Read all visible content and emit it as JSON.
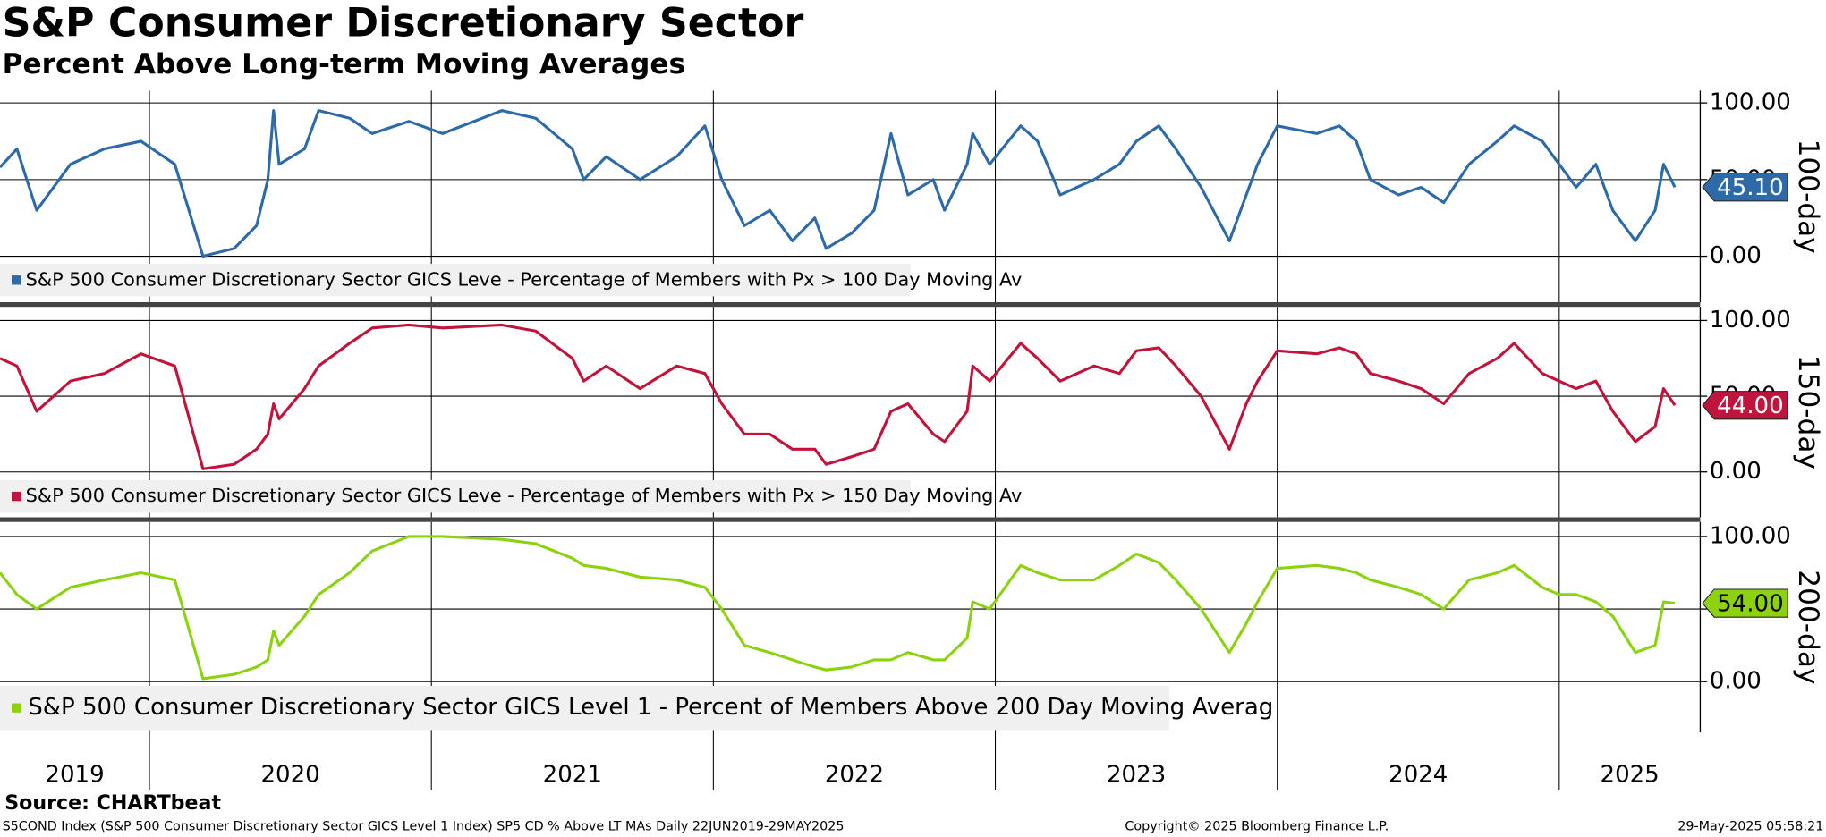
{
  "title": "S&P Consumer Discretionary Sector",
  "subtitle": "Percent Above Long-term Moving Averages",
  "x_axis": {
    "labels": [
      "2019",
      "2020",
      "2021",
      "2022",
      "2023",
      "2024",
      "2025"
    ]
  },
  "source": "Source: CHARTbeat",
  "footer": {
    "left": "S5COND Index (S&P 500 Consumer Discretionary Sector GICS Level 1 Index) SP5 CD % Above LT MAs  Daily 22JUN2019-29MAY2025",
    "center": "Copyright© 2025 Bloomberg Finance L.P.",
    "right": "29-May-2025 05:58:21"
  },
  "chart_data": [
    {
      "type": "line",
      "ylabel": "100-day",
      "last_label": "45.10",
      "xlim": [
        2019.47,
        2025.5
      ],
      "xticks": [
        2020,
        2021,
        2022,
        2023,
        2024,
        2025
      ],
      "ylim": [
        -30,
        108
      ],
      "yticks": [
        {
          "value": 100,
          "label": "100.00"
        },
        {
          "value": 50,
          "label": "50.00"
        },
        {
          "value": 0,
          "label": "0.00"
        }
      ],
      "grid": true,
      "x": [
        2019.47,
        2019.53,
        2019.6,
        2019.72,
        2019.84,
        2019.97,
        2020.09,
        2020.19,
        2020.3,
        2020.38,
        2020.42,
        2020.44,
        2020.46,
        2020.55,
        2020.6,
        2020.71,
        2020.79,
        2020.92,
        2021.04,
        2021.25,
        2021.37,
        2021.5,
        2021.54,
        2021.62,
        2021.74,
        2021.87,
        2021.97,
        2022.03,
        2022.11,
        2022.2,
        2022.28,
        2022.36,
        2022.4,
        2022.49,
        2022.57,
        2022.63,
        2022.69,
        2022.78,
        2022.82,
        2022.9,
        2022.92,
        2022.98,
        2023.09,
        2023.15,
        2023.23,
        2023.35,
        2023.44,
        2023.5,
        2023.58,
        2023.64,
        2023.73,
        2023.83,
        2023.89,
        2023.93,
        2024.0,
        2024.14,
        2024.22,
        2024.28,
        2024.33,
        2024.43,
        2024.51,
        2024.59,
        2024.68,
        2024.78,
        2024.84,
        2024.94,
        2025.0,
        2025.06,
        2025.13,
        2025.19,
        2025.27,
        2025.34,
        2025.37,
        2025.41
      ],
      "series": [
        {
          "name": "S&P 500 Consumer Discretionary Sector GICS Leve - Percentage of Members with Px > 100 Day Moving Av",
          "color": "#2e6aa8",
          "values": [
            58,
            70,
            30,
            60,
            70,
            75,
            60,
            0,
            5,
            20,
            50,
            95,
            60,
            70,
            95,
            90,
            80,
            88,
            80,
            95,
            90,
            70,
            50,
            65,
            50,
            65,
            85,
            50,
            20,
            30,
            10,
            25,
            5,
            15,
            30,
            80,
            40,
            50,
            30,
            60,
            80,
            60,
            85,
            75,
            40,
            50,
            60,
            75,
            85,
            70,
            45,
            10,
            40,
            60,
            85,
            80,
            85,
            75,
            50,
            40,
            45,
            35,
            60,
            75,
            85,
            75,
            60,
            45,
            60,
            30,
            10,
            30,
            60,
            45.1
          ]
        }
      ]
    },
    {
      "type": "line",
      "ylabel": "150-day",
      "last_label": "44.00",
      "xlim": [
        2019.47,
        2025.5
      ],
      "xticks": [
        2020,
        2021,
        2022,
        2023,
        2024,
        2025
      ],
      "ylim": [
        -30,
        109
      ],
      "yticks": [
        {
          "value": 100,
          "label": "100.00"
        },
        {
          "value": 50,
          "label": "50.00"
        },
        {
          "value": 0,
          "label": "0.00"
        }
      ],
      "grid": true,
      "x": [
        2019.47,
        2019.53,
        2019.6,
        2019.72,
        2019.84,
        2019.97,
        2020.09,
        2020.19,
        2020.3,
        2020.38,
        2020.42,
        2020.44,
        2020.46,
        2020.55,
        2020.6,
        2020.71,
        2020.79,
        2020.92,
        2021.04,
        2021.25,
        2021.37,
        2021.5,
        2021.54,
        2021.62,
        2021.74,
        2021.87,
        2021.97,
        2022.03,
        2022.11,
        2022.2,
        2022.28,
        2022.36,
        2022.4,
        2022.49,
        2022.57,
        2022.63,
        2022.69,
        2022.78,
        2022.82,
        2022.9,
        2022.92,
        2022.98,
        2023.09,
        2023.15,
        2023.23,
        2023.35,
        2023.44,
        2023.5,
        2023.58,
        2023.64,
        2023.73,
        2023.83,
        2023.89,
        2023.93,
        2024.0,
        2024.14,
        2024.22,
        2024.28,
        2024.33,
        2024.43,
        2024.51,
        2024.59,
        2024.68,
        2024.78,
        2024.84,
        2024.94,
        2025.0,
        2025.06,
        2025.13,
        2025.19,
        2025.27,
        2025.34,
        2025.37,
        2025.41
      ],
      "series": [
        {
          "name": "S&P 500 Consumer Discretionary Sector GICS Leve - Percentage of Members with Px > 150 Day Moving Av",
          "color": "#c0143c",
          "values": [
            75,
            70,
            40,
            60,
            65,
            78,
            70,
            2,
            5,
            15,
            25,
            45,
            35,
            55,
            70,
            85,
            95,
            97,
            95,
            97,
            93,
            75,
            60,
            70,
            55,
            70,
            65,
            45,
            25,
            25,
            15,
            15,
            5,
            10,
            15,
            40,
            45,
            25,
            20,
            40,
            70,
            60,
            85,
            75,
            60,
            70,
            65,
            80,
            82,
            70,
            50,
            15,
            45,
            60,
            80,
            78,
            82,
            78,
            65,
            60,
            55,
            45,
            65,
            75,
            85,
            65,
            60,
            55,
            60,
            40,
            20,
            30,
            55,
            44
          ]
        }
      ]
    },
    {
      "type": "line",
      "ylabel": "200-day",
      "last_label": "54.00",
      "xlim": [
        2019.47,
        2025.5
      ],
      "xticks": [
        2020,
        2021,
        2022,
        2023,
        2024,
        2025
      ],
      "ylim": [
        -35,
        110
      ],
      "yticks": [
        {
          "value": 100,
          "label": "100.00"
        },
        {
          "value": 50,
          "label": "50.00"
        },
        {
          "value": 0,
          "label": "0.00"
        }
      ],
      "grid": true,
      "x": [
        2019.47,
        2019.53,
        2019.6,
        2019.72,
        2019.84,
        2019.97,
        2020.09,
        2020.19,
        2020.3,
        2020.38,
        2020.42,
        2020.44,
        2020.46,
        2020.55,
        2020.6,
        2020.71,
        2020.79,
        2020.92,
        2021.04,
        2021.25,
        2021.37,
        2021.5,
        2021.54,
        2021.62,
        2021.74,
        2021.87,
        2021.97,
        2022.03,
        2022.11,
        2022.2,
        2022.28,
        2022.36,
        2022.4,
        2022.49,
        2022.57,
        2022.63,
        2022.69,
        2022.78,
        2022.82,
        2022.9,
        2022.92,
        2022.98,
        2023.09,
        2023.15,
        2023.23,
        2023.35,
        2023.44,
        2023.5,
        2023.58,
        2023.64,
        2023.73,
        2023.83,
        2023.89,
        2023.93,
        2024.0,
        2024.14,
        2024.22,
        2024.28,
        2024.33,
        2024.43,
        2024.51,
        2024.59,
        2024.68,
        2024.78,
        2024.84,
        2024.94,
        2025.0,
        2025.06,
        2025.13,
        2025.19,
        2025.27,
        2025.34,
        2025.37,
        2025.41
      ],
      "series": [
        {
          "name": "S&P 500 Consumer Discretionary Sector GICS Level 1 - Percent of Members Above 200 Day Moving Averag",
          "color": "#8cd211",
          "values": [
            75,
            60,
            50,
            65,
            70,
            75,
            70,
            2,
            5,
            10,
            15,
            35,
            25,
            45,
            60,
            75,
            90,
            100,
            100,
            98,
            95,
            85,
            80,
            78,
            72,
            70,
            65,
            50,
            25,
            20,
            15,
            10,
            8,
            10,
            15,
            15,
            20,
            15,
            15,
            30,
            55,
            50,
            80,
            75,
            70,
            70,
            80,
            88,
            82,
            70,
            50,
            20,
            40,
            55,
            78,
            80,
            78,
            75,
            70,
            65,
            60,
            50,
            70,
            75,
            80,
            65,
            60,
            60,
            55,
            45,
            20,
            25,
            55,
            54
          ]
        }
      ]
    }
  ]
}
